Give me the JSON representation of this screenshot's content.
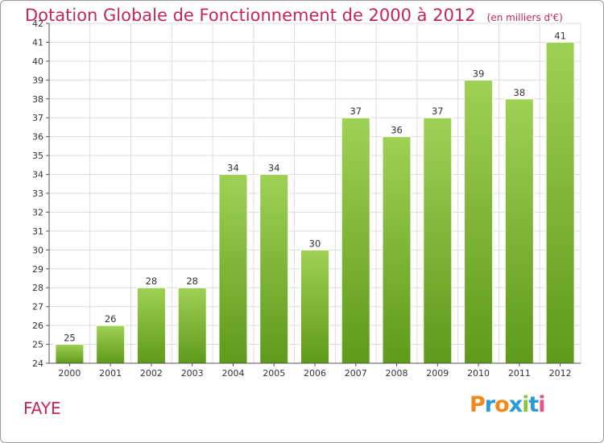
{
  "header": {
    "title": "Dotation Globale de Fonctionnement de 2000 à 2012",
    "unit": "(en milliers d'€)"
  },
  "footer": {
    "commune": "FAYE",
    "logo_text": "Proxiti"
  },
  "colors": {
    "title": "#c3265b",
    "bar_light": "#9fd154",
    "bar_dark": "#5f9a1a",
    "grid": "#dddddd",
    "logo_letters": [
      "#f08a1c",
      "#2a9bd6",
      "#f08a1c",
      "#2a9bd6",
      "#8cc63f",
      "#2a9bd6",
      "#e94e8a"
    ]
  },
  "chart_data": {
    "type": "bar",
    "title": "Dotation Globale de Fonctionnement de 2000 à 2012",
    "unit": "(en milliers d'€)",
    "categories": [
      "2000",
      "2001",
      "2002",
      "2003",
      "2004",
      "2005",
      "2006",
      "2007",
      "2008",
      "2009",
      "2010",
      "2011",
      "2012"
    ],
    "values": [
      25,
      26,
      28,
      28,
      34,
      34,
      30,
      37,
      36,
      37,
      39,
      38,
      41
    ],
    "ylim": [
      24,
      42
    ],
    "yticks": [
      24,
      25,
      26,
      27,
      28,
      29,
      30,
      31,
      32,
      33,
      34,
      35,
      36,
      37,
      38,
      39,
      40,
      41,
      42
    ],
    "grid": true,
    "legend": "none"
  }
}
